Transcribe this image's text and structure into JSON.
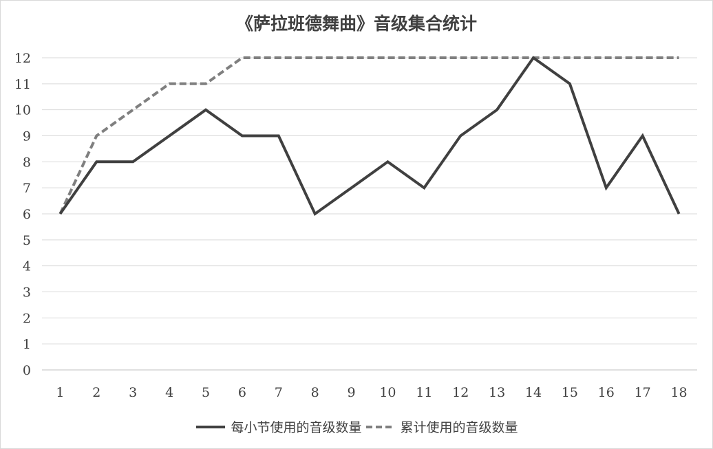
{
  "chart_data": {
    "type": "line",
    "title": "《萨拉班德舞曲》音级集合统计",
    "categories": [
      "1",
      "2",
      "3",
      "4",
      "5",
      "6",
      "7",
      "8",
      "9",
      "10",
      "11",
      "12",
      "13",
      "14",
      "15",
      "16",
      "17",
      "18"
    ],
    "series": [
      {
        "name": "每小节使用的音级数量",
        "values": [
          6,
          8,
          8,
          9,
          10,
          9,
          9,
          6,
          7,
          8,
          7,
          9,
          10,
          12,
          11,
          7,
          9,
          6
        ],
        "color": "#404040",
        "style": "solid"
      },
      {
        "name": "累计使用的音级数量",
        "values": [
          6,
          9,
          10,
          11,
          11,
          12,
          12,
          12,
          12,
          12,
          12,
          12,
          12,
          12,
          12,
          12,
          12,
          12
        ],
        "color": "#7f7f7f",
        "style": "dashed"
      }
    ],
    "ylim": [
      0,
      12
    ],
    "yticks": [
      0,
      1,
      2,
      3,
      4,
      5,
      6,
      7,
      8,
      9,
      10,
      11,
      12
    ],
    "grid": true,
    "legend_position": "bottom"
  }
}
